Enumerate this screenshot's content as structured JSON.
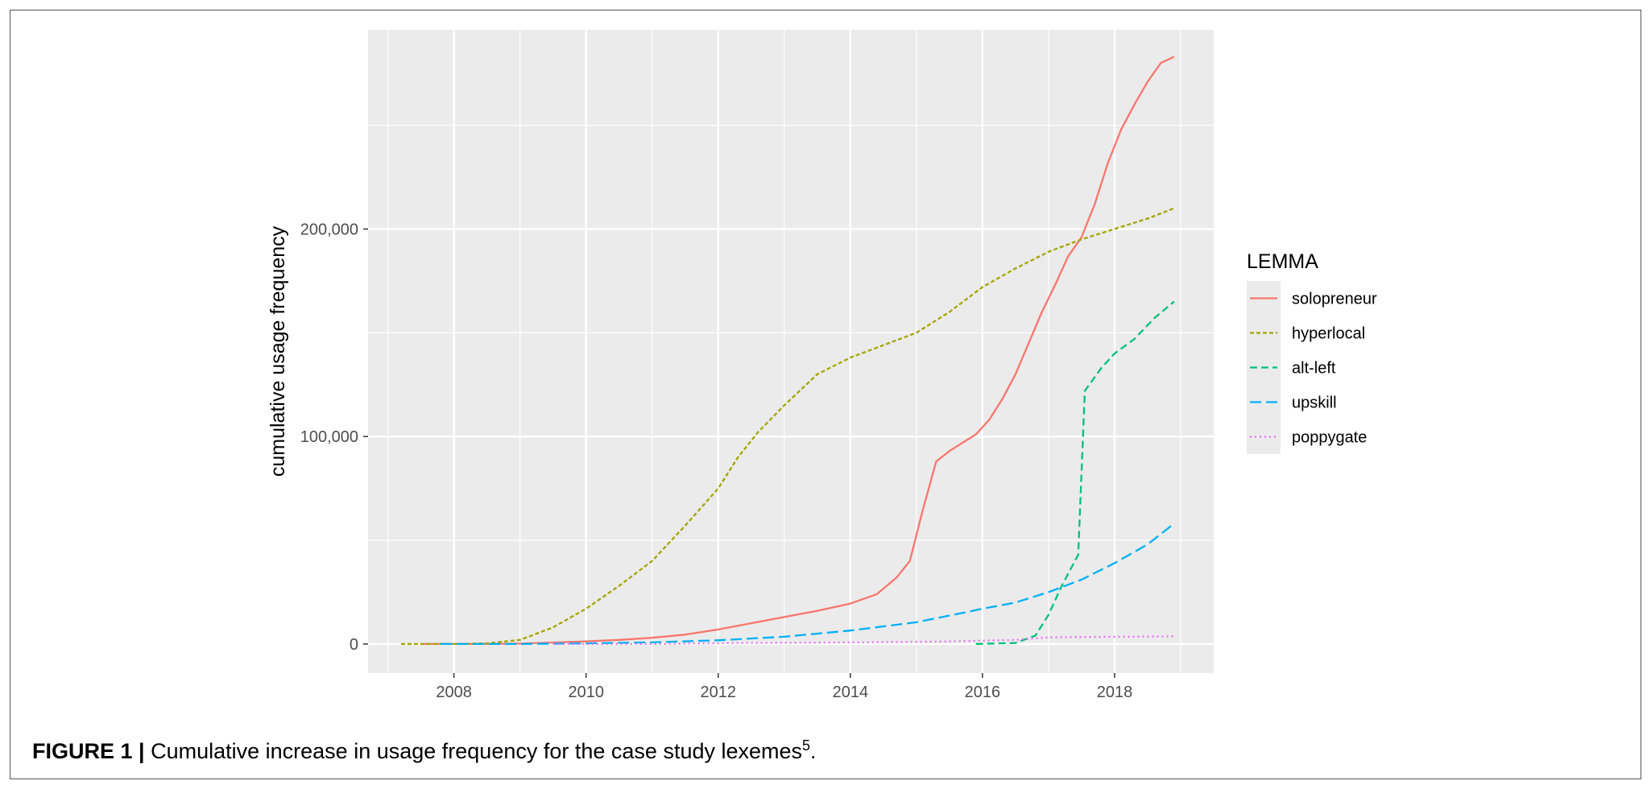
{
  "caption": {
    "label": "FIGURE 1 |",
    "text": "Cumulative increase in usage frequency for the case study lexemes",
    "footnote": "5",
    "end": "."
  },
  "chart_data": {
    "type": "line",
    "title": "",
    "xlabel": "",
    "ylabel": "cumulative usage frequency",
    "xlim": [
      2006.7,
      2019.5
    ],
    "ylim": [
      -14000,
      296000
    ],
    "x_ticks": [
      2008,
      2010,
      2012,
      2014,
      2016,
      2018
    ],
    "x_tick_labels": [
      "2008",
      "2010",
      "2012",
      "2014",
      "2016",
      "2018"
    ],
    "y_ticks": [
      0,
      100000,
      200000
    ],
    "y_tick_labels": [
      "0",
      "100,000",
      "200,000"
    ],
    "grid": true,
    "legend": {
      "title": "LEMMA",
      "position": "right"
    },
    "series": [
      {
        "name": "solopreneur",
        "color": "#F8766D",
        "dash": "solid",
        "points": [
          [
            2007.5,
            0
          ],
          [
            2008.5,
            0
          ],
          [
            2009,
            200
          ],
          [
            2009.5,
            700
          ],
          [
            2010,
            1300
          ],
          [
            2010.5,
            2000
          ],
          [
            2011,
            3000
          ],
          [
            2011.5,
            4500
          ],
          [
            2012,
            7000
          ],
          [
            2012.5,
            10000
          ],
          [
            2013,
            13000
          ],
          [
            2013.5,
            16000
          ],
          [
            2014,
            19500
          ],
          [
            2014.4,
            24000
          ],
          [
            2014.7,
            32000
          ],
          [
            2014.9,
            40000
          ],
          [
            2015.1,
            65000
          ],
          [
            2015.3,
            88000
          ],
          [
            2015.5,
            93000
          ],
          [
            2015.7,
            97000
          ],
          [
            2015.9,
            101000
          ],
          [
            2016.1,
            108000
          ],
          [
            2016.3,
            118000
          ],
          [
            2016.5,
            130000
          ],
          [
            2016.7,
            145000
          ],
          [
            2016.9,
            160000
          ],
          [
            2017.1,
            173000
          ],
          [
            2017.3,
            187000
          ],
          [
            2017.5,
            196000
          ],
          [
            2017.7,
            212000
          ],
          [
            2017.9,
            232000
          ],
          [
            2018.1,
            248000
          ],
          [
            2018.3,
            260000
          ],
          [
            2018.5,
            271000
          ],
          [
            2018.7,
            280000
          ],
          [
            2018.9,
            283000
          ]
        ]
      },
      {
        "name": "hyperlocal",
        "color": "#A3A500",
        "dash": "dotted-short",
        "points": [
          [
            2007.2,
            0
          ],
          [
            2008,
            0
          ],
          [
            2008.5,
            300
          ],
          [
            2009,
            2000
          ],
          [
            2009.5,
            8000
          ],
          [
            2010,
            17000
          ],
          [
            2010.5,
            28000
          ],
          [
            2011,
            40000
          ],
          [
            2011.5,
            57000
          ],
          [
            2012,
            75000
          ],
          [
            2012.3,
            90000
          ],
          [
            2012.6,
            102000
          ],
          [
            2013,
            115000
          ],
          [
            2013.5,
            130000
          ],
          [
            2014,
            138000
          ],
          [
            2014.5,
            144000
          ],
          [
            2015,
            150000
          ],
          [
            2015.5,
            160000
          ],
          [
            2016,
            172000
          ],
          [
            2016.5,
            181000
          ],
          [
            2017,
            189000
          ],
          [
            2017.5,
            195000
          ],
          [
            2018,
            200000
          ],
          [
            2018.5,
            205000
          ],
          [
            2018.9,
            210000
          ]
        ]
      },
      {
        "name": "alt-left",
        "color": "#00BF7D",
        "dash": "dashed-medium",
        "points": [
          [
            2015.9,
            0
          ],
          [
            2016.5,
            500
          ],
          [
            2016.8,
            4000
          ],
          [
            2017.0,
            14000
          ],
          [
            2017.2,
            28000
          ],
          [
            2017.45,
            43000
          ],
          [
            2017.55,
            122000
          ],
          [
            2017.8,
            133000
          ],
          [
            2018.0,
            140000
          ],
          [
            2018.3,
            147000
          ],
          [
            2018.6,
            157000
          ],
          [
            2018.9,
            165000
          ]
        ]
      },
      {
        "name": "upskill",
        "color": "#00B0F6",
        "dash": "dashed-long",
        "points": [
          [
            2007.8,
            0
          ],
          [
            2009,
            0
          ],
          [
            2010,
            300
          ],
          [
            2011,
            800
          ],
          [
            2012,
            1800
          ],
          [
            2013,
            3500
          ],
          [
            2014,
            6500
          ],
          [
            2015,
            10500
          ],
          [
            2015.7,
            15000
          ],
          [
            2016,
            17000
          ],
          [
            2016.5,
            20000
          ],
          [
            2017,
            25000
          ],
          [
            2017.5,
            31000
          ],
          [
            2018,
            39000
          ],
          [
            2018.5,
            48000
          ],
          [
            2018.9,
            58000
          ]
        ]
      },
      {
        "name": "poppygate",
        "color": "#E76BF3",
        "dash": "dotted-fine",
        "points": [
          [
            2009.5,
            0
          ],
          [
            2011,
            0
          ],
          [
            2012,
            400
          ],
          [
            2014,
            800
          ],
          [
            2015.5,
            1200
          ],
          [
            2016.5,
            2000
          ],
          [
            2017,
            3200
          ],
          [
            2018,
            3500
          ],
          [
            2018.9,
            3700
          ]
        ]
      }
    ]
  }
}
